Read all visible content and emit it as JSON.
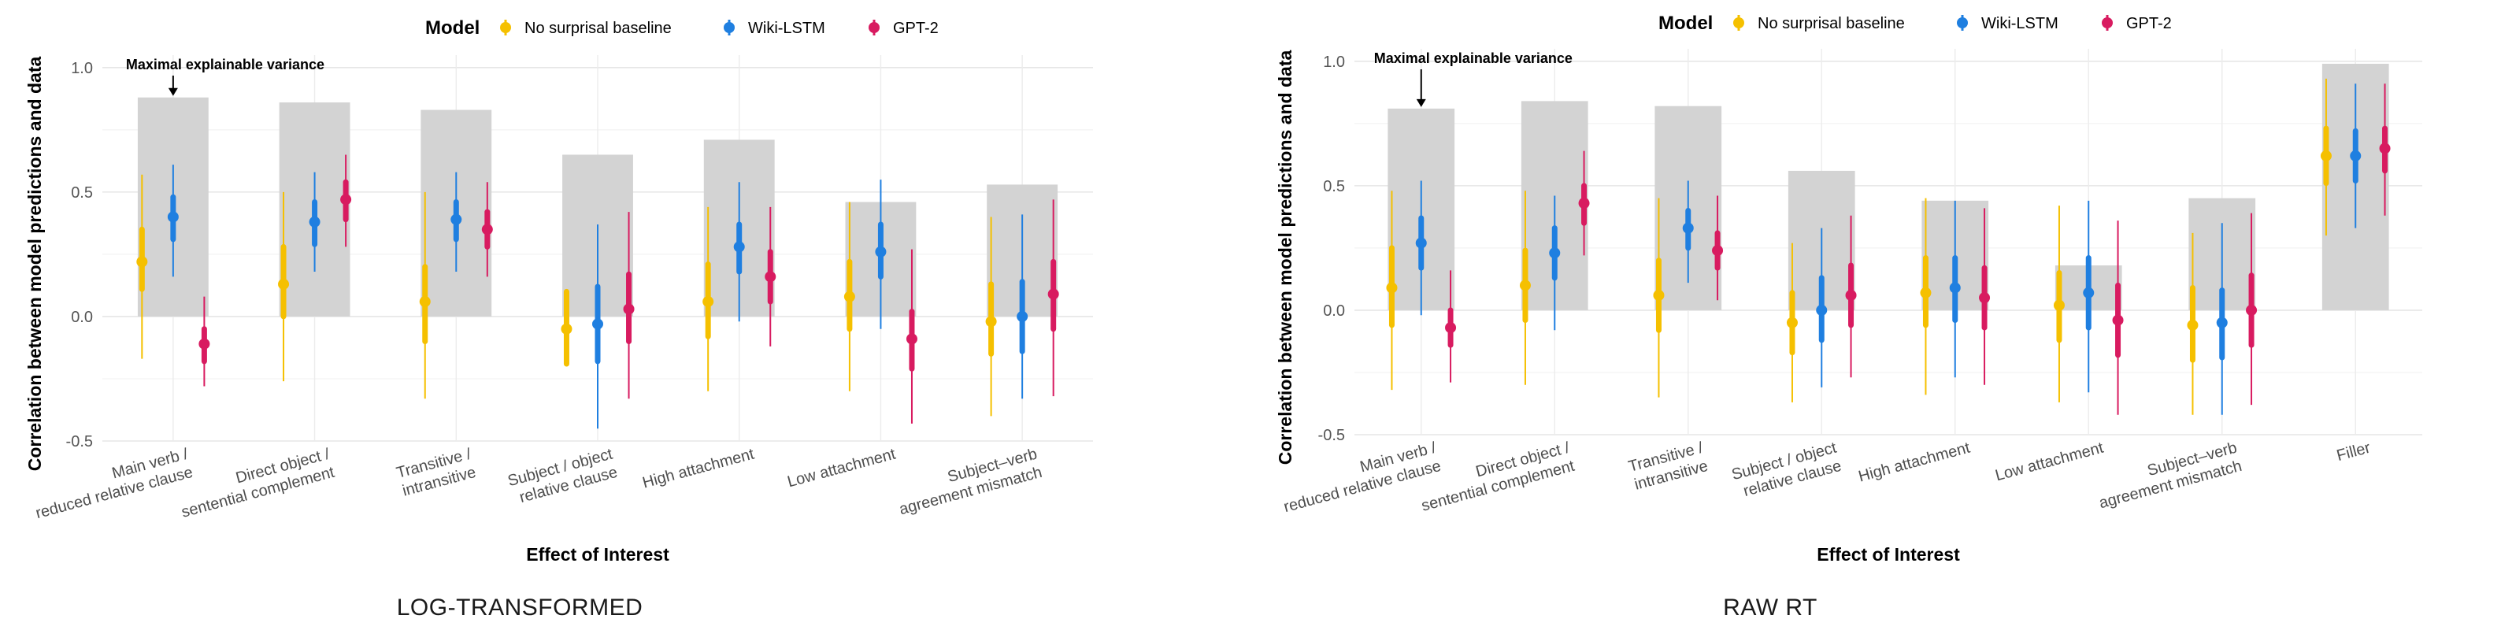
{
  "legend": {
    "title": "Model"
  },
  "chart_data": [
    {
      "type": "pointrange",
      "caption": "LOG-TRANSFORMED",
      "xlabel": "Effect of Interest",
      "ylabel": "Correlation between model predictions and data",
      "ylim": [
        -0.5,
        1.05
      ],
      "yticks": [
        -0.5,
        0.0,
        0.5,
        1.0
      ],
      "ytick_labels": [
        "-0.5",
        "0.0",
        "0.5",
        "1.0"
      ],
      "grid": true,
      "legend_position": "top",
      "annotation": {
        "text": "Maximal explainable variance",
        "category_index": 0
      },
      "categories": [
        [
          "Main verb /",
          "reduced relative clause"
        ],
        [
          "Direct object /",
          "sentential complement"
        ],
        [
          "Transitive /",
          "intransitive"
        ],
        [
          "Subject / object",
          "relative clause"
        ],
        [
          "High attachment"
        ],
        [
          "Low attachment"
        ],
        [
          "Subject–verb",
          "agreement mismatch"
        ]
      ],
      "ceiling": [
        0.88,
        0.86,
        0.83,
        0.65,
        0.71,
        0.46,
        0.53
      ],
      "series": [
        {
          "name": "No surprisal baseline",
          "color": "#F5C000",
          "mean": [
            0.22,
            0.13,
            0.06,
            -0.05,
            0.06,
            0.08,
            -0.02
          ],
          "inner": [
            [
              0.11,
              0.35
            ],
            [
              0.0,
              0.28
            ],
            [
              -0.1,
              0.2
            ],
            [
              -0.19,
              0.1
            ],
            [
              -0.08,
              0.21
            ],
            [
              -0.05,
              0.22
            ],
            [
              -0.15,
              0.13
            ]
          ],
          "outer": [
            [
              -0.17,
              0.57
            ],
            [
              -0.26,
              0.5
            ],
            [
              -0.33,
              0.5
            ],
            [
              -0.2,
              0.1
            ],
            [
              -0.3,
              0.44
            ],
            [
              -0.3,
              0.46
            ],
            [
              -0.4,
              0.4
            ]
          ]
        },
        {
          "name": "Wiki-LSTM",
          "color": "#1F7FE0",
          "mean": [
            0.4,
            0.38,
            0.39,
            -0.03,
            0.28,
            0.26,
            0.0
          ],
          "inner": [
            [
              0.31,
              0.48
            ],
            [
              0.29,
              0.46
            ],
            [
              0.31,
              0.46
            ],
            [
              -0.18,
              0.12
            ],
            [
              0.18,
              0.37
            ],
            [
              0.16,
              0.37
            ],
            [
              -0.14,
              0.14
            ]
          ],
          "outer": [
            [
              0.16,
              0.61
            ],
            [
              0.18,
              0.58
            ],
            [
              0.18,
              0.58
            ],
            [
              -0.45,
              0.37
            ],
            [
              -0.02,
              0.54
            ],
            [
              -0.05,
              0.55
            ],
            [
              -0.33,
              0.41
            ]
          ]
        },
        {
          "name": "GPT-2",
          "color": "#D81B60",
          "mean": [
            -0.11,
            0.47,
            0.35,
            0.03,
            0.16,
            -0.09,
            0.09
          ],
          "inner": [
            [
              -0.18,
              -0.05
            ],
            [
              0.39,
              0.54
            ],
            [
              0.28,
              0.42
            ],
            [
              -0.1,
              0.17
            ],
            [
              0.06,
              0.26
            ],
            [
              -0.21,
              0.02
            ],
            [
              -0.05,
              0.22
            ]
          ],
          "outer": [
            [
              -0.28,
              0.08
            ],
            [
              0.28,
              0.65
            ],
            [
              0.16,
              0.54
            ],
            [
              -0.33,
              0.42
            ],
            [
              -0.12,
              0.44
            ],
            [
              -0.43,
              0.27
            ],
            [
              -0.32,
              0.47
            ]
          ]
        }
      ]
    },
    {
      "type": "pointrange",
      "caption": "RAW RT",
      "xlabel": "Effect of Interest",
      "ylabel": "Correlation between model predictions and data",
      "ylim": [
        -0.5,
        1.05
      ],
      "yticks": [
        -0.5,
        0.0,
        0.5,
        1.0
      ],
      "ytick_labels": [
        "-0.5",
        "0.0",
        "0.5",
        "1.0"
      ],
      "grid": true,
      "legend_position": "top",
      "annotation": {
        "text": "Maximal explainable variance",
        "category_index": 0
      },
      "categories": [
        [
          "Main verb /",
          "reduced relative clause"
        ],
        [
          "Direct object /",
          "sentential complement"
        ],
        [
          "Transitive /",
          "intransitive"
        ],
        [
          "Subject / object",
          "relative clause"
        ],
        [
          "High attachment"
        ],
        [
          "Low attachment"
        ],
        [
          "Subject–verb",
          "agreement mismatch"
        ],
        [
          "Filler"
        ]
      ],
      "ceiling": [
        0.81,
        0.84,
        0.82,
        0.56,
        0.44,
        0.18,
        0.45,
        0.99
      ],
      "series": [
        {
          "name": "No surprisal baseline",
          "color": "#F5C000",
          "mean": [
            0.09,
            0.1,
            0.06,
            -0.05,
            0.07,
            0.02,
            -0.06,
            0.62
          ],
          "inner": [
            [
              -0.06,
              0.25
            ],
            [
              -0.04,
              0.24
            ],
            [
              -0.08,
              0.2
            ],
            [
              -0.17,
              0.07
            ],
            [
              -0.06,
              0.21
            ],
            [
              -0.12,
              0.15
            ],
            [
              -0.2,
              0.09
            ],
            [
              0.51,
              0.73
            ]
          ],
          "outer": [
            [
              -0.32,
              0.48
            ],
            [
              -0.3,
              0.48
            ],
            [
              -0.35,
              0.45
            ],
            [
              -0.37,
              0.27
            ],
            [
              -0.34,
              0.45
            ],
            [
              -0.37,
              0.42
            ],
            [
              -0.42,
              0.31
            ],
            [
              0.3,
              0.93
            ]
          ]
        },
        {
          "name": "Wiki-LSTM",
          "color": "#1F7FE0",
          "mean": [
            0.27,
            0.23,
            0.33,
            0.0,
            0.09,
            0.07,
            -0.05,
            0.62
          ],
          "inner": [
            [
              0.17,
              0.37
            ],
            [
              0.13,
              0.33
            ],
            [
              0.25,
              0.4
            ],
            [
              -0.12,
              0.13
            ],
            [
              -0.04,
              0.21
            ],
            [
              -0.07,
              0.21
            ],
            [
              -0.19,
              0.08
            ],
            [
              0.52,
              0.72
            ]
          ],
          "outer": [
            [
              -0.02,
              0.52
            ],
            [
              -0.08,
              0.46
            ],
            [
              0.11,
              0.52
            ],
            [
              -0.31,
              0.33
            ],
            [
              -0.27,
              0.44
            ],
            [
              -0.33,
              0.44
            ],
            [
              -0.42,
              0.35
            ],
            [
              0.33,
              0.91
            ]
          ]
        },
        {
          "name": "GPT-2",
          "color": "#D81B60",
          "mean": [
            -0.07,
            0.43,
            0.24,
            0.06,
            0.05,
            -0.04,
            0.0,
            0.65
          ],
          "inner": [
            [
              -0.14,
              0.0
            ],
            [
              0.35,
              0.5
            ],
            [
              0.17,
              0.31
            ],
            [
              -0.06,
              0.18
            ],
            [
              -0.07,
              0.17
            ],
            [
              -0.18,
              0.1
            ],
            [
              -0.14,
              0.14
            ],
            [
              0.56,
              0.73
            ]
          ],
          "outer": [
            [
              -0.29,
              0.16
            ],
            [
              0.22,
              0.64
            ],
            [
              0.04,
              0.46
            ],
            [
              -0.27,
              0.38
            ],
            [
              -0.3,
              0.41
            ],
            [
              -0.42,
              0.36
            ],
            [
              -0.38,
              0.39
            ],
            [
              0.38,
              0.91
            ]
          ]
        }
      ]
    }
  ]
}
